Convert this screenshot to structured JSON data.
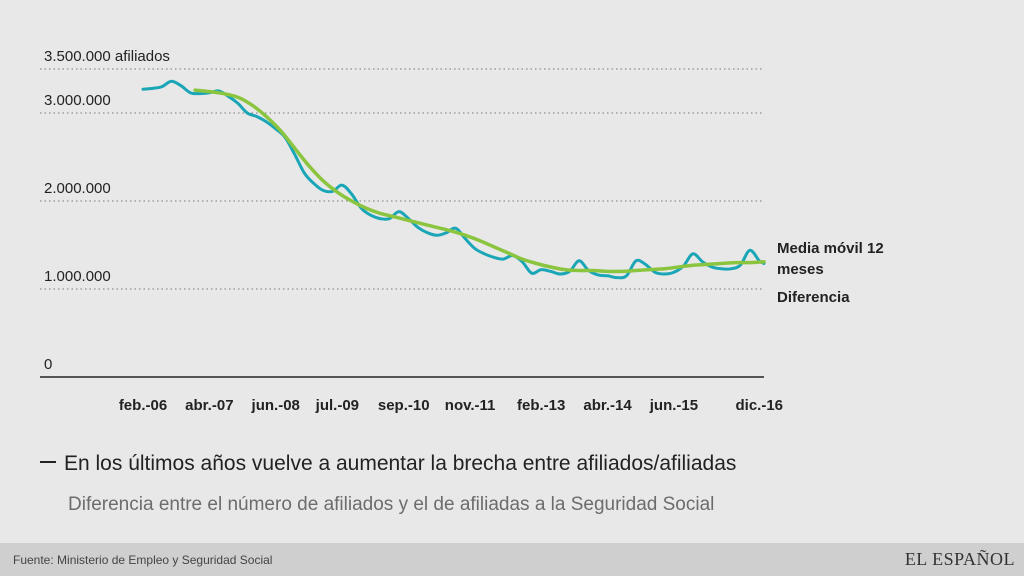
{
  "chart_data": {
    "type": "line",
    "y_tick_labels": [
      {
        "value": 3500000,
        "label": "3.500.000 afiliados"
      },
      {
        "value": 3000000,
        "label": "3.000.000"
      },
      {
        "value": 2000000,
        "label": "2.000.000"
      },
      {
        "value": 1000000,
        "label": "1.000.000"
      },
      {
        "value": 0,
        "label": "0"
      }
    ],
    "ylim": [
      0,
      3500000
    ],
    "xlim": [
      "2006-01",
      "2017-01"
    ],
    "x_tick_labels": [
      {
        "x": "2006-02",
        "label": "feb.-06"
      },
      {
        "x": "2007-04",
        "label": "abr.-07"
      },
      {
        "x": "2008-06",
        "label": "jun.-08"
      },
      {
        "x": "2009-07",
        "label": "jul.-09"
      },
      {
        "x": "2010-09",
        "label": "sep.-10"
      },
      {
        "x": "2011-11",
        "label": "nov.-11"
      },
      {
        "x": "2013-02",
        "label": "feb.-13"
      },
      {
        "x": "2014-04",
        "label": "abr.-14"
      },
      {
        "x": "2015-06",
        "label": "jun.-15"
      },
      {
        "x": "2016-12",
        "label": "dic.-16"
      }
    ],
    "series": [
      {
        "name": "Diferencia",
        "color": "#1aa6b7",
        "points": [
          [
            "2006-02",
            3270000
          ],
          [
            "2006-04",
            3280000
          ],
          [
            "2006-06",
            3300000
          ],
          [
            "2006-08",
            3360000
          ],
          [
            "2006-10",
            3310000
          ],
          [
            "2006-12",
            3230000
          ],
          [
            "2007-02",
            3220000
          ],
          [
            "2007-04",
            3230000
          ],
          [
            "2007-06",
            3250000
          ],
          [
            "2007-08",
            3190000
          ],
          [
            "2007-10",
            3110000
          ],
          [
            "2007-12",
            3000000
          ],
          [
            "2008-02",
            2960000
          ],
          [
            "2008-04",
            2900000
          ],
          [
            "2008-06",
            2820000
          ],
          [
            "2008-08",
            2720000
          ],
          [
            "2008-10",
            2530000
          ],
          [
            "2008-12",
            2320000
          ],
          [
            "2009-02",
            2200000
          ],
          [
            "2009-04",
            2120000
          ],
          [
            "2009-06",
            2110000
          ],
          [
            "2009-08",
            2180000
          ],
          [
            "2009-10",
            2080000
          ],
          [
            "2009-12",
            1920000
          ],
          [
            "2010-02",
            1840000
          ],
          [
            "2010-04",
            1800000
          ],
          [
            "2010-06",
            1800000
          ],
          [
            "2010-08",
            1880000
          ],
          [
            "2010-10",
            1800000
          ],
          [
            "2010-12",
            1700000
          ],
          [
            "2011-02",
            1640000
          ],
          [
            "2011-04",
            1610000
          ],
          [
            "2011-06",
            1640000
          ],
          [
            "2011-08",
            1690000
          ],
          [
            "2011-10",
            1570000
          ],
          [
            "2011-12",
            1460000
          ],
          [
            "2012-02",
            1400000
          ],
          [
            "2012-04",
            1360000
          ],
          [
            "2012-06",
            1340000
          ],
          [
            "2012-08",
            1380000
          ],
          [
            "2012-10",
            1310000
          ],
          [
            "2012-12",
            1180000
          ],
          [
            "2013-02",
            1220000
          ],
          [
            "2013-04",
            1200000
          ],
          [
            "2013-06",
            1170000
          ],
          [
            "2013-08",
            1200000
          ],
          [
            "2013-10",
            1320000
          ],
          [
            "2013-12",
            1210000
          ],
          [
            "2014-02",
            1160000
          ],
          [
            "2014-04",
            1150000
          ],
          [
            "2014-06",
            1130000
          ],
          [
            "2014-08",
            1150000
          ],
          [
            "2014-10",
            1320000
          ],
          [
            "2014-12",
            1280000
          ],
          [
            "2015-02",
            1190000
          ],
          [
            "2015-04",
            1170000
          ],
          [
            "2015-06",
            1190000
          ],
          [
            "2015-08",
            1260000
          ],
          [
            "2015-10",
            1400000
          ],
          [
            "2015-12",
            1310000
          ],
          [
            "2016-02",
            1250000
          ],
          [
            "2016-04",
            1230000
          ],
          [
            "2016-06",
            1230000
          ],
          [
            "2016-08",
            1270000
          ],
          [
            "2016-10",
            1440000
          ],
          [
            "2016-12",
            1320000
          ],
          [
            "2017-01",
            1290000
          ]
        ]
      },
      {
        "name": "Media móvil 12 meses",
        "color": "#8bc53f",
        "points": [
          [
            "2007-01",
            3260000
          ],
          [
            "2007-06",
            3230000
          ],
          [
            "2007-10",
            3180000
          ],
          [
            "2008-01",
            3090000
          ],
          [
            "2008-04",
            2960000
          ],
          [
            "2008-07",
            2800000
          ],
          [
            "2008-10",
            2600000
          ],
          [
            "2009-01",
            2400000
          ],
          [
            "2009-04",
            2230000
          ],
          [
            "2009-07",
            2100000
          ],
          [
            "2009-10",
            2000000
          ],
          [
            "2010-01",
            1920000
          ],
          [
            "2010-04",
            1860000
          ],
          [
            "2010-07",
            1820000
          ],
          [
            "2010-10",
            1780000
          ],
          [
            "2011-01",
            1740000
          ],
          [
            "2011-04",
            1700000
          ],
          [
            "2011-07",
            1660000
          ],
          [
            "2011-10",
            1610000
          ],
          [
            "2012-01",
            1550000
          ],
          [
            "2012-04",
            1480000
          ],
          [
            "2012-07",
            1410000
          ],
          [
            "2012-10",
            1340000
          ],
          [
            "2013-01",
            1290000
          ],
          [
            "2013-04",
            1250000
          ],
          [
            "2013-07",
            1220000
          ],
          [
            "2013-10",
            1210000
          ],
          [
            "2014-01",
            1210000
          ],
          [
            "2014-04",
            1200000
          ],
          [
            "2014-07",
            1200000
          ],
          [
            "2014-10",
            1210000
          ],
          [
            "2015-01",
            1220000
          ],
          [
            "2015-04",
            1230000
          ],
          [
            "2015-07",
            1250000
          ],
          [
            "2015-10",
            1270000
          ],
          [
            "2016-01",
            1280000
          ],
          [
            "2016-04",
            1290000
          ],
          [
            "2016-07",
            1300000
          ],
          [
            "2016-10",
            1300000
          ],
          [
            "2017-01",
            1310000
          ]
        ]
      }
    ],
    "legend": {
      "placement": "right",
      "labels": [
        "Media móvil 12",
        "meses",
        "Diferencia"
      ]
    },
    "grid": "dotted-horizontal"
  },
  "headline": "En los últimos años vuelve a aumentar la brecha entre afiliados/afiliadas",
  "subtitle": "Diferencia entre el número de afiliados y el de afiliadas a la Seguridad Social",
  "footer": {
    "source": "Fuente: Ministerio de Empleo y Seguridad Social",
    "logo": "EL ESPAÑOL"
  }
}
